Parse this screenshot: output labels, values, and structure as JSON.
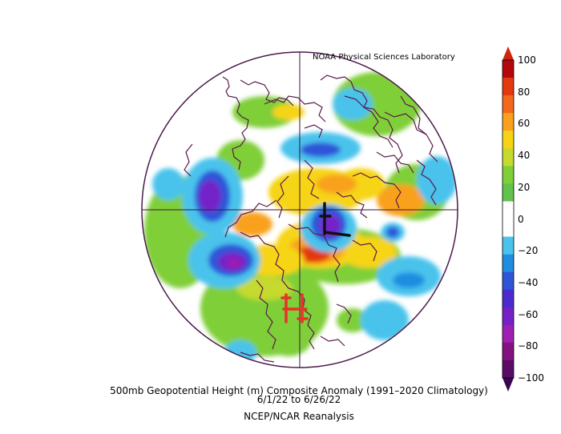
{
  "header": {
    "lab": "NOAA Physical Sciences Laboratory"
  },
  "caption": {
    "line1": "500mb Geopotential Height (m) Composite Anomaly (1991–2020 Climatology)",
    "line2": "6/1/22  to 6/26/22",
    "line3": "NCEP/NCAR Reanalysis"
  },
  "map_annotations": {
    "high": "H",
    "low": "L"
  },
  "colorbar": {
    "labels": [
      "100",
      "80",
      "60",
      "40",
      "20",
      "0",
      "−20",
      "−40",
      "−60",
      "−80",
      "−100"
    ],
    "colors": [
      "#b5070b",
      "#e4380f",
      "#f4671c",
      "#f9a11d",
      "#f6d415",
      "#c6d92e",
      "#7fcf39",
      "#63c24b",
      "#ffffff",
      "#ffffff",
      "#49c3ec",
      "#1f8ee0",
      "#2f54d8",
      "#4b2bd0",
      "#7421c8",
      "#9f1fb2",
      "#83117f",
      "#5a0b66"
    ],
    "top_arrow": "#d0240c",
    "bottom_arrow": "#3b0553"
  }
}
